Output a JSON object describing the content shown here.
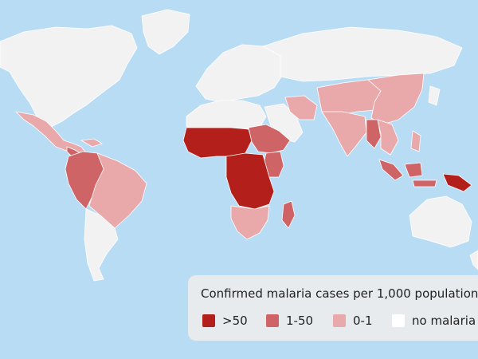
{
  "colors": {
    "ocean": "#b9dcf5",
    "no_data": "#f2f2f2",
    "high": "#b3201c",
    "medium": "#cf6466",
    "low": "#e9a9aa",
    "none": "#ffffff"
  },
  "legend": {
    "title": "Confirmed malaria cases per 1,000 population",
    "items": [
      {
        "label": ">50",
        "category": "high",
        "color": "#b3201c"
      },
      {
        "label": "1-50",
        "category": "medium",
        "color": "#cf6466"
      },
      {
        "label": "0-1",
        "category": "low",
        "color": "#e9a9aa"
      },
      {
        "label": "no malaria",
        "category": "none",
        "color": "#ffffff"
      }
    ]
  }
}
